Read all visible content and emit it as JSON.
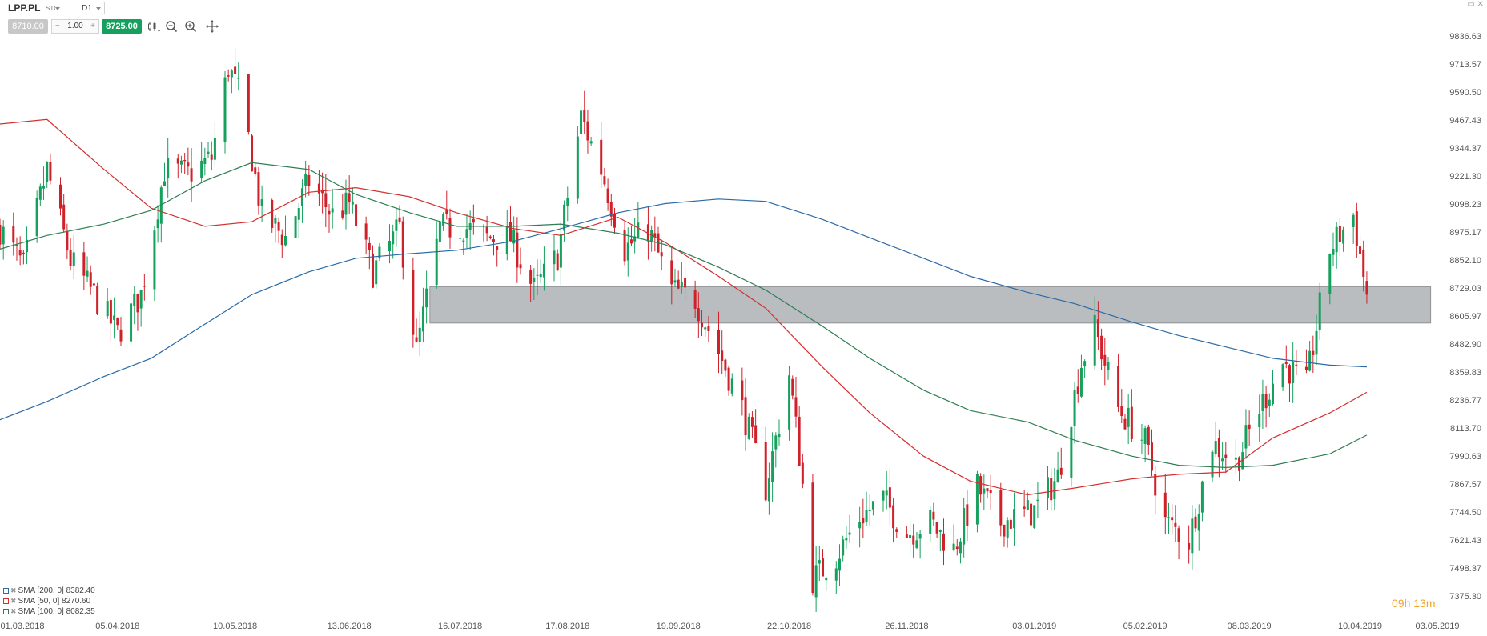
{
  "toolbar": {
    "symbol": "LPP.PL",
    "type": "STC",
    "interval": "D1",
    "bid": "8710.00",
    "qty": "1.00",
    "qty_minus": "−",
    "qty_plus": "+",
    "ask": "8725.00"
  },
  "window_controls": "▭ ✕",
  "legend": [
    {
      "label": "SMA [200, 0] 8382.40",
      "color": "#2a6aa6"
    },
    {
      "label": "SMA [50, 0] 8270.60",
      "color": "#d32f2f"
    },
    {
      "label": "SMA [100, 0] 8082.35",
      "color": "#2e7d52"
    }
  ],
  "countdown": "09h 13m",
  "colors": {
    "up": "#16a05e",
    "down": "#d0212a",
    "zone": "#a9acaf"
  },
  "chart_data": {
    "type": "candlestick",
    "x_ticks": [
      "01.03.2018",
      "05.04.2018",
      "10.05.2018",
      "13.06.2018",
      "16.07.2018",
      "17.08.2018",
      "19.09.2018",
      "22.10.2018",
      "26.11.2018",
      "03.01.2019",
      "05.02.2019",
      "08.03.2019",
      "10.04.2019",
      "03.05.2019"
    ],
    "y_ticks": [
      "9836.63",
      "9713.57",
      "9590.50",
      "9467.43",
      "9344.37",
      "9221.30",
      "9098.23",
      "8975.17",
      "8852.10",
      "8729.03",
      "8605.97",
      "8482.90",
      "8359.83",
      "8236.77",
      "8113.70",
      "7990.63",
      "7867.57",
      "7744.50",
      "7621.43",
      "7498.37",
      "7375.30"
    ],
    "ylim": [
      7375.3,
      9836.63
    ],
    "x_range": [
      "2018-03-01",
      "2019-05-03"
    ],
    "zone": {
      "from": "2018-07-07",
      "to": "2019-05-01",
      "low": 8575,
      "high": 8735
    },
    "price_path": [
      [
        "2018-03-01",
        8990
      ],
      [
        "2018-03-08",
        8820
      ],
      [
        "2018-03-15",
        9250
      ],
      [
        "2018-03-22",
        8850
      ],
      [
        "2018-03-29",
        8700
      ],
      [
        "2018-04-05",
        8530
      ],
      [
        "2018-04-12",
        8700
      ],
      [
        "2018-04-19",
        9250
      ],
      [
        "2018-04-26",
        9230
      ],
      [
        "2018-05-03",
        9300
      ],
      [
        "2018-05-08",
        9700
      ],
      [
        "2018-05-12",
        9550
      ],
      [
        "2018-05-18",
        9050
      ],
      [
        "2018-05-25",
        8950
      ],
      [
        "2018-06-01",
        9200
      ],
      [
        "2018-06-08",
        9050
      ],
      [
        "2018-06-13",
        9100
      ],
      [
        "2018-06-20",
        8800
      ],
      [
        "2018-06-28",
        8990
      ],
      [
        "2018-07-03",
        8450
      ],
      [
        "2018-07-10",
        8990
      ],
      [
        "2018-07-17",
        9000
      ],
      [
        "2018-07-24",
        8950
      ],
      [
        "2018-07-31",
        8950
      ],
      [
        "2018-08-07",
        8720
      ],
      [
        "2018-08-14",
        8870
      ],
      [
        "2018-08-21",
        9480
      ],
      [
        "2018-08-27",
        9250
      ],
      [
        "2018-09-03",
        8900
      ],
      [
        "2018-09-10",
        8990
      ],
      [
        "2018-09-17",
        8720
      ],
      [
        "2018-09-24",
        8680
      ],
      [
        "2018-10-01",
        8450
      ],
      [
        "2018-10-08",
        8200
      ],
      [
        "2018-10-15",
        7850
      ],
      [
        "2018-10-22",
        8350
      ],
      [
        "2018-10-25",
        8000
      ],
      [
        "2018-10-29",
        7450
      ],
      [
        "2018-11-05",
        7550
      ],
      [
        "2018-11-12",
        7720
      ],
      [
        "2018-11-19",
        7800
      ],
      [
        "2018-11-26",
        7650
      ],
      [
        "2018-12-03",
        7700
      ],
      [
        "2018-12-10",
        7580
      ],
      [
        "2018-12-17",
        7850
      ],
      [
        "2018-12-24",
        7700
      ],
      [
        "2019-01-03",
        7750
      ],
      [
        "2019-01-10",
        7900
      ],
      [
        "2019-01-17",
        8400
      ],
      [
        "2019-01-21",
        8550
      ],
      [
        "2019-01-28",
        8200
      ],
      [
        "2019-02-05",
        8050
      ],
      [
        "2019-02-11",
        7700
      ],
      [
        "2019-02-18",
        7620
      ],
      [
        "2019-02-25",
        8050
      ],
      [
        "2019-03-04",
        7960
      ],
      [
        "2019-03-11",
        8200
      ],
      [
        "2019-03-18",
        8400
      ],
      [
        "2019-03-25",
        8300
      ],
      [
        "2019-04-01",
        8900
      ],
      [
        "2019-04-08",
        9050
      ],
      [
        "2019-04-12",
        8700
      ]
    ],
    "series": [
      {
        "name": "SMA [200, 0]",
        "color": "#2a6aa6",
        "points": [
          [
            "2018-03-01",
            8150
          ],
          [
            "2018-03-15",
            8230
          ],
          [
            "2018-04-01",
            8340
          ],
          [
            "2018-04-15",
            8420
          ],
          [
            "2018-05-01",
            8570
          ],
          [
            "2018-05-15",
            8700
          ],
          [
            "2018-06-01",
            8800
          ],
          [
            "2018-06-15",
            8860
          ],
          [
            "2018-07-01",
            8880
          ],
          [
            "2018-07-15",
            8895
          ],
          [
            "2018-08-01",
            8935
          ],
          [
            "2018-08-15",
            8990
          ],
          [
            "2018-09-01",
            9060
          ],
          [
            "2018-09-15",
            9100
          ],
          [
            "2018-10-01",
            9120
          ],
          [
            "2018-10-15",
            9110
          ],
          [
            "2018-11-01",
            9030
          ],
          [
            "2018-11-15",
            8950
          ],
          [
            "2018-12-01",
            8860
          ],
          [
            "2018-12-15",
            8780
          ],
          [
            "2019-01-01",
            8710
          ],
          [
            "2019-01-15",
            8660
          ],
          [
            "2019-02-01",
            8580
          ],
          [
            "2019-02-15",
            8520
          ],
          [
            "2019-03-01",
            8470
          ],
          [
            "2019-03-15",
            8420
          ],
          [
            "2019-04-01",
            8390
          ],
          [
            "2019-04-12",
            8382.4
          ]
        ]
      },
      {
        "name": "SMA [50, 0]",
        "color": "#d32f2f",
        "points": [
          [
            "2018-03-01",
            9450
          ],
          [
            "2018-03-15",
            9470
          ],
          [
            "2018-04-01",
            9250
          ],
          [
            "2018-04-15",
            9080
          ],
          [
            "2018-05-01",
            9000
          ],
          [
            "2018-05-15",
            9020
          ],
          [
            "2018-06-01",
            9150
          ],
          [
            "2018-06-15",
            9170
          ],
          [
            "2018-07-01",
            9130
          ],
          [
            "2018-07-15",
            9060
          ],
          [
            "2018-08-01",
            8990
          ],
          [
            "2018-08-15",
            8960
          ],
          [
            "2018-09-01",
            9040
          ],
          [
            "2018-09-15",
            8930
          ],
          [
            "2018-10-01",
            8780
          ],
          [
            "2018-10-15",
            8640
          ],
          [
            "2018-11-01",
            8380
          ],
          [
            "2018-11-15",
            8180
          ],
          [
            "2018-12-01",
            7990
          ],
          [
            "2018-12-15",
            7880
          ],
          [
            "2019-01-01",
            7820
          ],
          [
            "2019-01-15",
            7850
          ],
          [
            "2019-02-01",
            7890
          ],
          [
            "2019-02-15",
            7910
          ],
          [
            "2019-03-01",
            7920
          ],
          [
            "2019-03-15",
            8070
          ],
          [
            "2019-04-01",
            8180
          ],
          [
            "2019-04-12",
            8270.6
          ]
        ]
      },
      {
        "name": "SMA [100, 0]",
        "color": "#2e7d52",
        "points": [
          [
            "2018-03-01",
            8900
          ],
          [
            "2018-03-15",
            8960
          ],
          [
            "2018-04-01",
            9010
          ],
          [
            "2018-04-15",
            9070
          ],
          [
            "2018-05-01",
            9200
          ],
          [
            "2018-05-15",
            9280
          ],
          [
            "2018-06-01",
            9250
          ],
          [
            "2018-06-15",
            9140
          ],
          [
            "2018-07-01",
            9060
          ],
          [
            "2018-07-15",
            9000
          ],
          [
            "2018-08-01",
            9000
          ],
          [
            "2018-08-15",
            9010
          ],
          [
            "2018-09-01",
            8970
          ],
          [
            "2018-09-15",
            8920
          ],
          [
            "2018-10-01",
            8820
          ],
          [
            "2018-10-15",
            8720
          ],
          [
            "2018-11-01",
            8560
          ],
          [
            "2018-11-15",
            8420
          ],
          [
            "2018-12-01",
            8280
          ],
          [
            "2018-12-15",
            8190
          ],
          [
            "2019-01-01",
            8140
          ],
          [
            "2019-01-15",
            8060
          ],
          [
            "2019-02-01",
            7990
          ],
          [
            "2019-02-15",
            7950
          ],
          [
            "2019-03-01",
            7940
          ],
          [
            "2019-03-15",
            7950
          ],
          [
            "2019-04-01",
            8000
          ],
          [
            "2019-04-12",
            8082.35
          ]
        ]
      }
    ]
  }
}
